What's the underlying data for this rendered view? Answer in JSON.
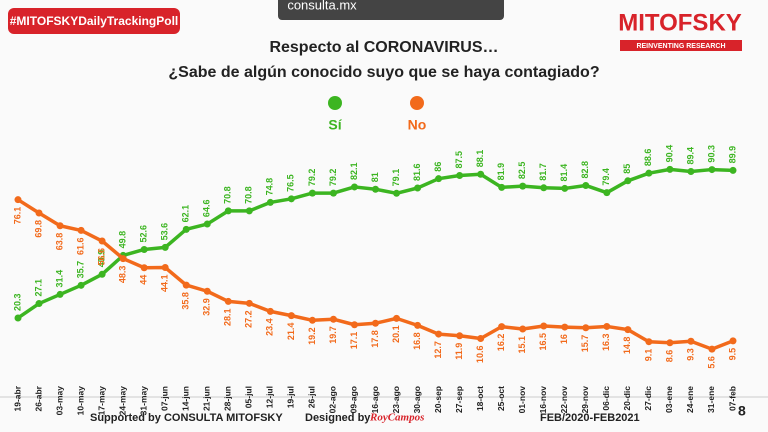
{
  "header": {
    "hashtag": "#MITOFSKYDailyTrackingPoll",
    "site": "consulta.mx",
    "brand": "MITOFSKY",
    "tagline": "REINVENTING RESEARCH"
  },
  "chart_data": {
    "type": "line",
    "title": "Respecto al CORONAVIRUS…",
    "subtitle": "¿Sabe de algún conocido suyo que se haya contagiado?",
    "categories": [
      "19-abr",
      "26-abr",
      "03-may",
      "10-may",
      "17-may",
      "24-may",
      "31-may",
      "07-jun",
      "14-jun",
      "21-jun",
      "28-jun",
      "05-jul",
      "12-jul",
      "19-jul",
      "26-jul",
      "02-ago",
      "09-ago",
      "16-ago",
      "23-ago",
      "30-ago",
      "20-sep",
      "27-sep",
      "18-oct",
      "25-oct",
      "01-nov",
      "16-nov",
      "22-nov",
      "29-nov",
      "06-dic",
      "20-dic",
      "27-dic",
      "03-ene",
      "24-ene",
      "31-ene",
      "07-feb"
    ],
    "series": [
      {
        "name": "Sí",
        "color": "#3cb521",
        "values": [
          20.3,
          27.1,
          31.4,
          35.7,
          40.9,
          49.8,
          52.6,
          53.6,
          62.1,
          64.6,
          70.8,
          70.8,
          74.8,
          76.5,
          79.2,
          79.2,
          82.1,
          81.0,
          79.1,
          81.6,
          86.0,
          87.5,
          88.1,
          81.9,
          82.5,
          81.7,
          81.4,
          82.8,
          79.4,
          85.0,
          88.6,
          90.4,
          89.4,
          90.3,
          89.9
        ]
      },
      {
        "name": "No",
        "color": "#f26a1b",
        "values": [
          76.1,
          69.8,
          63.8,
          61.6,
          56.6,
          48.3,
          44.0,
          44.1,
          35.8,
          32.9,
          28.1,
          27.2,
          23.4,
          21.4,
          19.2,
          19.7,
          17.1,
          17.8,
          20.1,
          16.8,
          12.7,
          11.9,
          10.6,
          16.2,
          15.1,
          16.5,
          16.0,
          15.7,
          16.3,
          14.8,
          9.1,
          8.6,
          9.3,
          5.6,
          9.5
        ]
      }
    ],
    "ylim": [
      0,
      100
    ]
  },
  "footer": {
    "supported": "Supported by  CONSULTA  MITOFSKY",
    "designed": "Designed by",
    "designer": "RoyCampos",
    "period": "FEB/2020-FEB2021",
    "page": "8"
  }
}
